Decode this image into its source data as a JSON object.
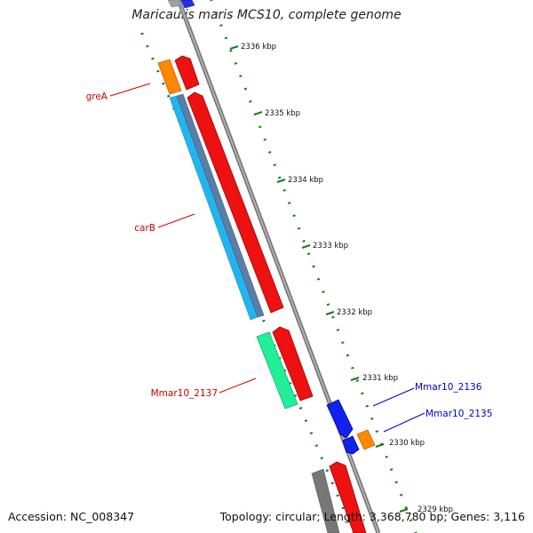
{
  "title": "Maricaulis maris MCS10, complete genome",
  "footer": {
    "accession": "Accession: NC_008347",
    "summary": "Topology: circular; Length: 3,368,780 bp; Genes: 3,116"
  },
  "ticks": [
    "2336 kbp",
    "2335 kbp",
    "2334 kbp",
    "2333 kbp",
    "2332 kbp",
    "2331 kbp",
    "2330 kbp",
    "2329 kbp"
  ],
  "gene_labels": [
    {
      "name": "greA",
      "color": "#cc0000"
    },
    {
      "name": "carB",
      "color": "#cc0000"
    },
    {
      "name": "Mmar10_2137",
      "color": "#cc0000"
    },
    {
      "name": "Mmar10_2136",
      "color": "#0000cc"
    },
    {
      "name": "Mmar10_2135",
      "color": "#0000cc"
    }
  ],
  "colors": {
    "backbone": "#8c8c8c",
    "tick": "#1a7a1a",
    "cds_red": "#ee1111",
    "cds_blue": "#1122ee",
    "cds_orange": "#ff8800",
    "cds_cyan": "#22b4ee",
    "cds_steel": "#5a7ea8",
    "cds_green": "#22ee99",
    "cds_gray": "#777777"
  }
}
